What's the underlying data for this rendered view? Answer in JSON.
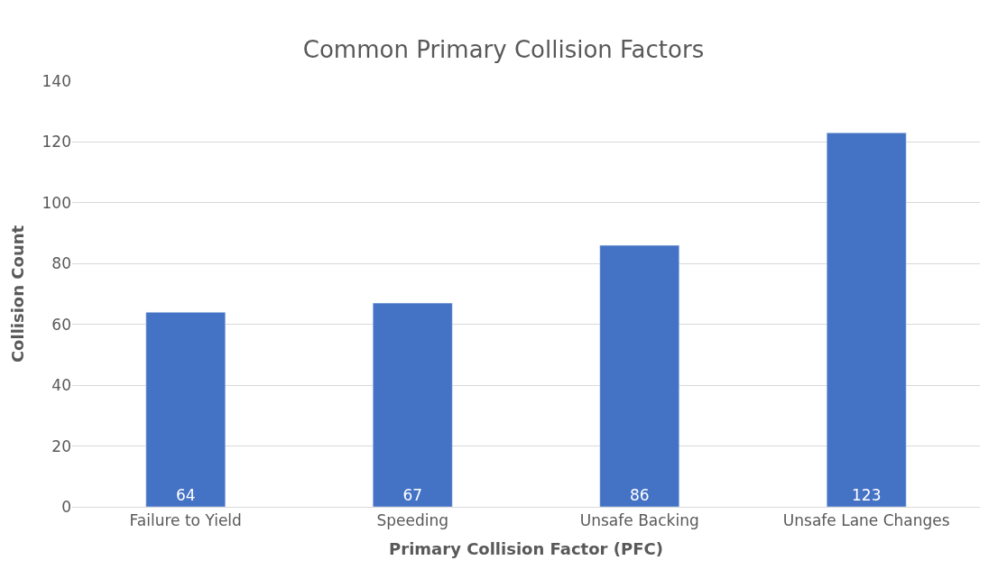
{
  "chart_data": {
    "type": "bar",
    "title": "Common Primary Collision Factors",
    "xlabel": "Primary Collision Factor (PFC)",
    "ylabel": "Collision Count",
    "categories": [
      "Failure to Yield",
      "Speeding",
      "Unsafe Backing",
      "Unsafe Lane Changes"
    ],
    "values": [
      64,
      67,
      86,
      123
    ],
    "color": "#4472c4",
    "ylim": [
      0,
      140
    ],
    "yticks": [
      0,
      20,
      40,
      60,
      80,
      100,
      120,
      140
    ],
    "grid": "y",
    "data_labels": true,
    "legend": false
  }
}
